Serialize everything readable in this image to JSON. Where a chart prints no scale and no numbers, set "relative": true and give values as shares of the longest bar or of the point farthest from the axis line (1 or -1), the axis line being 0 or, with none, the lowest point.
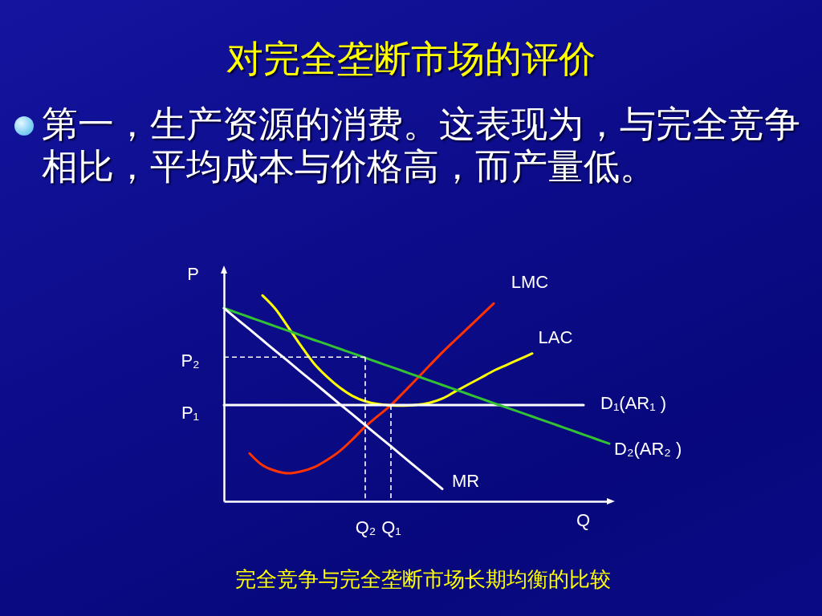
{
  "chart_data": {
    "type": "line",
    "title": "对完全垄断市场的评价",
    "subtitle": "第一，生产资源的消费。这表现为，与完全竞争相比，平均成本与价格高，而产量低。",
    "xlabel": "Q",
    "ylabel": "P",
    "relative": true,
    "categories": [
      null,
      null,
      null,
      null,
      null,
      null,
      null,
      null,
      null,
      null,
      null,
      "Q₂",
      null,
      "Q₁",
      null,
      null,
      null,
      null,
      null,
      null,
      null,
      null,
      null,
      null,
      null,
      null,
      null,
      null,
      null,
      null,
      null
    ],
    "annotations": [
      "P₂",
      "P₁",
      "完全竞争与完全垄断市场长期均衡的比较"
    ],
    "series": [
      {
        "name": "LMC",
        "color": "#ff3300",
        "values": [
          null,
          null,
          0.232,
          0.175,
          0.148,
          0.136,
          0.145,
          0.165,
          0.2,
          0.243,
          0.3,
          0.363,
          0.415,
          0.467,
          0.53,
          0.594,
          0.659,
          0.723,
          0.783,
          0.842,
          0.901,
          0.961,
          null,
          null,
          null,
          null,
          null,
          null,
          null,
          null,
          null
        ]
      },
      {
        "name": "LAC",
        "color": "#ffff00",
        "values": [
          null,
          null,
          null,
          1,
          0.935,
          0.846,
          0.755,
          0.67,
          0.606,
          0.553,
          0.512,
          0.486,
          0.472,
          0.466,
          0.465,
          0.468,
          0.478,
          0.499,
          0.533,
          0.567,
          0.6,
          0.634,
          0.662,
          0.69,
          0.718,
          null,
          null,
          null,
          null,
          null,
          null
        ]
      },
      {
        "name": "D₁(AR₁ )",
        "color": "#ffffff",
        "values": [
          0.467,
          0.467,
          0.467,
          0.467,
          0.467,
          0.467,
          0.467,
          0.467,
          0.467,
          0.467,
          0.467,
          0.467,
          0.467,
          0.467,
          0.467,
          0.467,
          0.467,
          0.467,
          0.467,
          0.467,
          0.467,
          0.467,
          0.467,
          0.467,
          0.467,
          0.467,
          0.467,
          0.467,
          0.467,
          null,
          null
        ]
      },
      {
        "name": "D₂(AR₂ )",
        "color": "#33c233",
        "values": [
          0.938,
          0.916,
          0.894,
          0.872,
          0.85,
          0.828,
          0.806,
          0.784,
          0.763,
          0.741,
          0.719,
          0.697,
          0.675,
          0.653,
          0.631,
          0.609,
          0.587,
          0.565,
          0.543,
          0.521,
          0.499,
          0.477,
          0.455,
          0.434,
          0.412,
          0.39,
          0.368,
          0.346,
          0.324,
          0.302,
          0.28
        ]
      },
      {
        "name": "MR",
        "color": "#ffffff",
        "values": [
          0.938,
          0.886,
          0.835,
          0.783,
          0.731,
          0.68,
          0.628,
          0.577,
          0.525,
          0.473,
          0.422,
          0.37,
          0.318,
          0.267,
          0.215,
          0.163,
          0.112,
          0.06,
          null,
          null,
          null,
          null,
          null,
          null,
          null,
          null,
          null,
          null,
          null,
          null,
          null
        ]
      },
      {
        "color": "#ffffff",
        "line_style": "dashed",
        "values": [
          0.7,
          0.7,
          0.7,
          0.7,
          0.7,
          0.7,
          0.7,
          0.7,
          0.7,
          0.7,
          0.7,
          0.7,
          null,
          null,
          null,
          null,
          null,
          null,
          null,
          null,
          null,
          null,
          null,
          null,
          null,
          null,
          null,
          null,
          null,
          null,
          null
        ]
      },
      {
        "color": "#ffffff",
        "line_style": "dashed",
        "x": [
          "Q₂",
          "Q₂"
        ],
        "values": [
          0.7,
          0
        ]
      },
      {
        "color": "#ffffff",
        "line_style": "dashed",
        "x": [
          "Q₁",
          "Q₁"
        ],
        "values": [
          0.467,
          0
        ]
      }
    ],
    "legend": false
  }
}
